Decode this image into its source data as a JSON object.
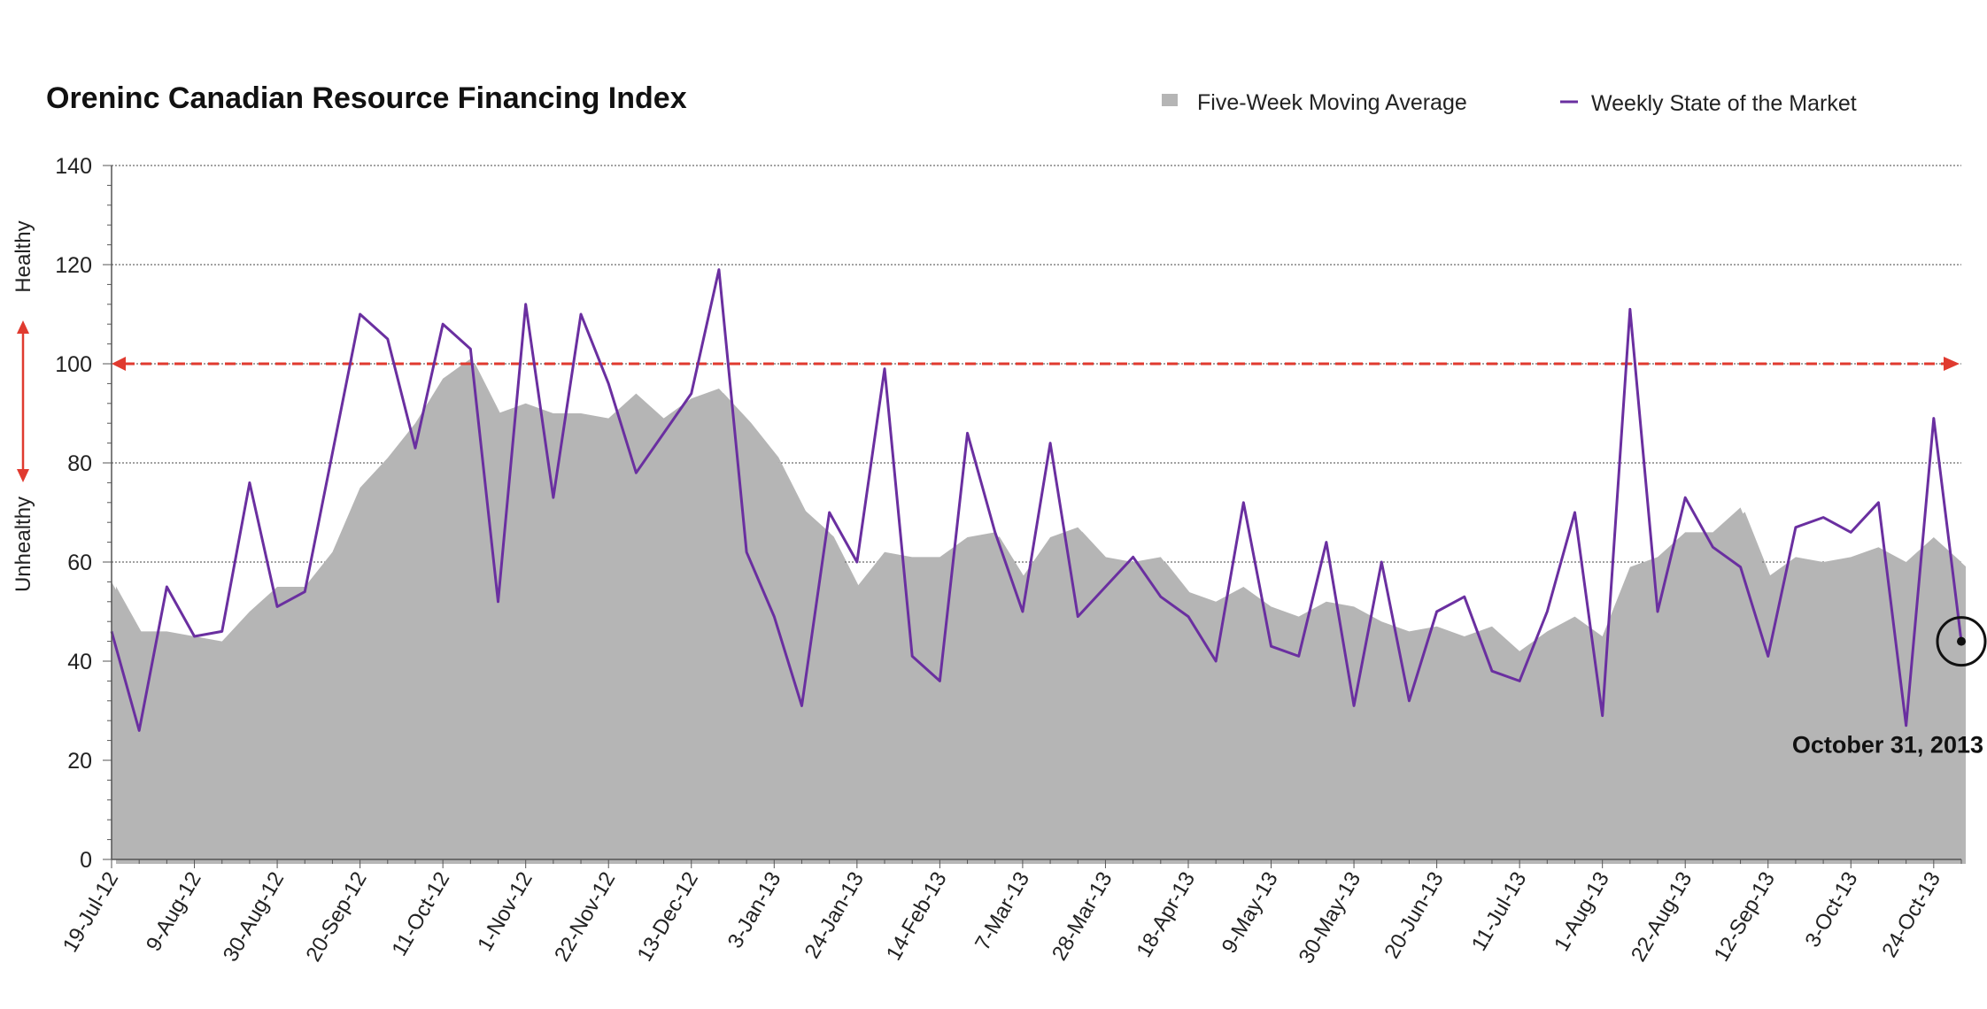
{
  "chart_data": {
    "type": "area",
    "title": "Oreninc Canadian Resource Financing Index",
    "xlabel": "",
    "ylabel": "",
    "ylim": [
      0,
      140
    ],
    "yticks": [
      0,
      20,
      40,
      60,
      80,
      100,
      120,
      140
    ],
    "grid": true,
    "legend_position": "top-right",
    "y_side_labels": {
      "upper": "Healthy",
      "lower": "Unhealthy"
    },
    "threshold": {
      "value": 100,
      "color": "#e03a2f"
    },
    "x_tick_labels": [
      "19-Jul-12",
      "9-Aug-12",
      "30-Aug-12",
      "20-Sep-12",
      "11-Oct-12",
      "1-Nov-12",
      "22-Nov-12",
      "13-Dec-12",
      "3-Jan-13",
      "24-Jan-13",
      "14-Feb-13",
      "7-Mar-13",
      "28-Mar-13",
      "18-Apr-13",
      "9-May-13",
      "30-May-13",
      "20-Jun-13",
      "11-Jul-13",
      "1-Aug-13",
      "22-Aug-13",
      "12-Sep-13",
      "3-Oct-13",
      "24-Oct-13"
    ],
    "x_tick_every": 3,
    "series": [
      {
        "name": "Five-Week Moving Average",
        "type": "area",
        "color": "#b5b5b5",
        "values": [
          56,
          46,
          46,
          45,
          44,
          50,
          55,
          55,
          62,
          75,
          81,
          88,
          97,
          101,
          90,
          92,
          90,
          90,
          89,
          94,
          89,
          93,
          95,
          89,
          82,
          71,
          66,
          55,
          62,
          61,
          61,
          65,
          66,
          57,
          65,
          67,
          61,
          60,
          61,
          54,
          52,
          55,
          51,
          49,
          52,
          51,
          48,
          46,
          47,
          45,
          47,
          42,
          46,
          49,
          45,
          59,
          61,
          66,
          66,
          71,
          57,
          61,
          60,
          61,
          63,
          60,
          65,
          60
        ]
      },
      {
        "name": "Weekly State of the Market",
        "type": "line",
        "color": "#6a2fa0",
        "values": [
          46,
          26,
          55,
          45,
          46,
          76,
          51,
          54,
          82,
          110,
          105,
          83,
          108,
          103,
          52,
          112,
          73,
          110,
          96,
          78,
          86,
          94,
          119,
          62,
          49,
          31,
          70,
          60,
          99,
          41,
          36,
          86,
          66,
          50,
          84,
          49,
          55,
          61,
          53,
          49,
          40,
          72,
          43,
          41,
          64,
          31,
          60,
          32,
          50,
          53,
          38,
          36,
          50,
          70,
          29,
          111,
          50,
          73,
          63,
          59,
          41,
          67,
          69,
          66,
          72,
          27,
          89,
          44
        ]
      }
    ],
    "annotations": [
      {
        "text": "October 31, 2013",
        "series": "Weekly State of the Market",
        "point_index": 67
      }
    ]
  }
}
